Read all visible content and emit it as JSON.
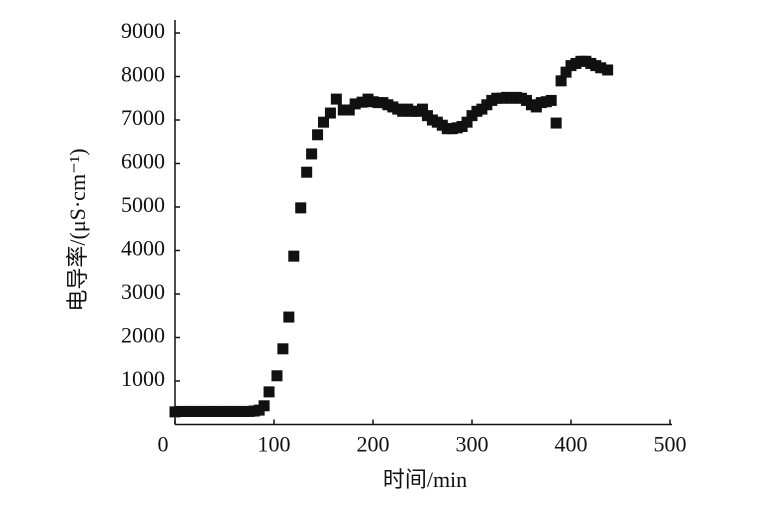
{
  "chart_data": {
    "type": "scatter",
    "xlabel": "时间/min",
    "ylabel": "电导率/(μS·cm⁻¹)",
    "color": "#111111",
    "x": [
      0,
      5,
      10,
      15,
      20,
      25,
      30,
      35,
      40,
      45,
      50,
      55,
      60,
      65,
      70,
      75,
      80,
      85,
      90,
      95,
      103,
      109,
      115,
      120,
      127,
      133,
      138,
      144,
      150,
      157,
      163,
      170,
      176,
      182,
      189,
      195,
      200,
      205,
      210,
      215,
      220,
      225,
      230,
      235,
      240,
      245,
      250,
      255,
      260,
      265,
      270,
      275,
      280,
      285,
      290,
      295,
      300,
      305,
      310,
      315,
      320,
      325,
      330,
      335,
      340,
      345,
      350,
      355,
      360,
      365,
      370,
      375,
      380,
      385,
      390,
      395,
      400,
      405,
      410,
      415,
      420,
      425,
      430,
      437
    ],
    "values": [
      290,
      300,
      300,
      300,
      300,
      300,
      300,
      300,
      300,
      300,
      300,
      300,
      300,
      300,
      300,
      300,
      310,
      330,
      430,
      750,
      1120,
      1740,
      2470,
      3870,
      4980,
      5800,
      6220,
      6660,
      6950,
      7160,
      7480,
      7230,
      7230,
      7370,
      7410,
      7480,
      7420,
      7400,
      7400,
      7350,
      7300,
      7250,
      7200,
      7250,
      7200,
      7200,
      7250,
      7100,
      7000,
      6950,
      6880,
      6800,
      6800,
      6820,
      6850,
      6950,
      7100,
      7200,
      7250,
      7350,
      7450,
      7500,
      7500,
      7520,
      7500,
      7520,
      7500,
      7450,
      7350,
      7300,
      7400,
      7420,
      7450,
      6930,
      7900,
      8100,
      8250,
      8300,
      8350,
      8350,
      8300,
      8250,
      8200,
      8150
    ],
    "xlim": [
      0,
      500
    ],
    "xticks": [
      0,
      100,
      200,
      300,
      400,
      500
    ],
    "ylim": [
      0,
      9000
    ],
    "yticks": [
      1000,
      2000,
      3000,
      4000,
      5000,
      6000,
      7000,
      8000,
      9000
    ]
  }
}
